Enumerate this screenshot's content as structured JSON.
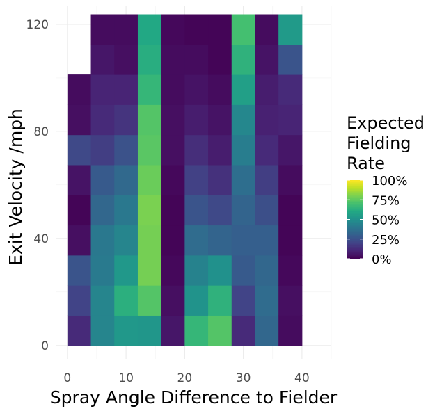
{
  "chart_data": {
    "type": "heatmap",
    "title": "",
    "xlabel": "Spray Angle Difference to Fielder",
    "ylabel": "Exit Velocity /mph",
    "xlim": [
      -2,
      45
    ],
    "ylim": [
      -5,
      127
    ],
    "x_ticks": [
      0,
      10,
      20,
      30,
      40
    ],
    "y_ticks": [
      0,
      40,
      80,
      120
    ],
    "x_tick_labels": [
      "0",
      "10",
      "20",
      "30",
      "40"
    ],
    "y_tick_labels": [
      "0",
      "40",
      "80",
      "120"
    ],
    "bin_width_x": 4,
    "bin_height_y": 11.25,
    "x_bin_centers": [
      2,
      6,
      10,
      14,
      18,
      22,
      26,
      30,
      34,
      38
    ],
    "y_bin_centers": [
      5.625,
      16.875,
      28.125,
      39.375,
      50.625,
      61.875,
      73.125,
      84.375,
      95.625,
      106.875,
      118.125
    ],
    "values": [
      [
        0.12,
        0.2,
        0.26,
        0.04,
        0.01,
        0.05,
        0.22,
        0.04,
        0.03,
        null,
        null
      ],
      [
        0.45,
        0.45,
        0.41,
        0.4,
        0.33,
        0.28,
        0.18,
        0.12,
        0.1,
        0.06,
        0.03
      ],
      [
        0.53,
        0.63,
        0.53,
        0.45,
        0.4,
        0.34,
        0.25,
        0.15,
        0.1,
        0.04,
        0.03
      ],
      [
        0.52,
        0.73,
        0.79,
        0.79,
        0.8,
        0.77,
        0.74,
        0.73,
        0.66,
        0.62,
        0.6
      ],
      [
        0.06,
        0.04,
        0.02,
        0.01,
        0.01,
        0.02,
        0.04,
        0.04,
        0.03,
        0.03,
        0.02
      ],
      [
        0.66,
        0.51,
        0.44,
        0.35,
        0.26,
        0.19,
        0.13,
        0.08,
        0.05,
        0.03,
        0.01
      ],
      [
        0.73,
        0.64,
        0.5,
        0.32,
        0.22,
        0.14,
        0.08,
        0.05,
        0.03,
        0.01,
        0.01
      ],
      [
        0.12,
        0.2,
        0.28,
        0.3,
        0.32,
        0.36,
        0.42,
        0.46,
        0.56,
        0.64,
        0.7
      ],
      [
        0.33,
        0.35,
        0.33,
        0.3,
        0.24,
        0.18,
        0.12,
        0.09,
        0.08,
        0.05,
        0.03
      ],
      [
        0.03,
        0.04,
        0.02,
        0.01,
        0.01,
        0.03,
        0.06,
        0.1,
        0.12,
        0.26,
        0.54
      ]
    ],
    "legend": {
      "title_lines": [
        "Expected",
        "Fielding",
        "Rate"
      ],
      "labels": [
        "100%",
        "75%",
        "50%",
        "25%",
        "0%"
      ],
      "breaks": [
        1.0,
        0.75,
        0.5,
        0.25,
        0.0
      ],
      "placement": "right"
    },
    "grid": true,
    "colormap": "viridis"
  }
}
